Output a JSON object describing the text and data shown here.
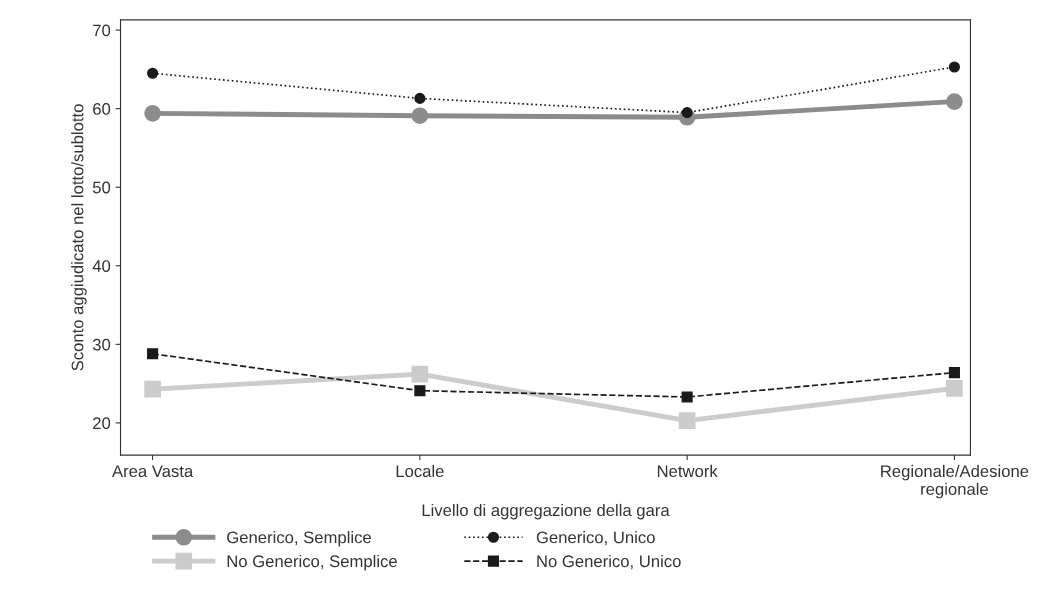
{
  "chart_data": {
    "type": "line",
    "xlabel": "Livello di aggregazione della gara",
    "ylabel": "Sconto aggiudicato nel lotto/sublotto",
    "categories": [
      "Area Vasta",
      "Locale",
      "Network",
      "Regionale/Adesione\nregionale"
    ],
    "ylim": [
      15.9,
      71.3
    ],
    "yticks": [
      20,
      30,
      40,
      50,
      60,
      70
    ],
    "grid": false,
    "legend": "bottom",
    "series": [
      {
        "name": "Generico, Semplice",
        "color": "#8c8c8c",
        "marker": "circle",
        "line_style": "solid",
        "values": [
          59.4,
          59.1,
          58.9,
          60.9
        ]
      },
      {
        "name": "Generico, Unico",
        "color": "#1a1a1a",
        "marker": "circle",
        "line_style": "dotted",
        "values": [
          64.5,
          61.3,
          59.5,
          65.3
        ]
      },
      {
        "name": "No Generico, Semplice",
        "color": "#cccccc",
        "marker": "square",
        "line_style": "solid",
        "values": [
          24.3,
          26.2,
          20.3,
          24.4
        ]
      },
      {
        "name": "No Generico, Unico",
        "color": "#1a1a1a",
        "marker": "square",
        "line_style": "dashed",
        "values": [
          28.8,
          24.1,
          23.3,
          26.4
        ]
      }
    ]
  }
}
